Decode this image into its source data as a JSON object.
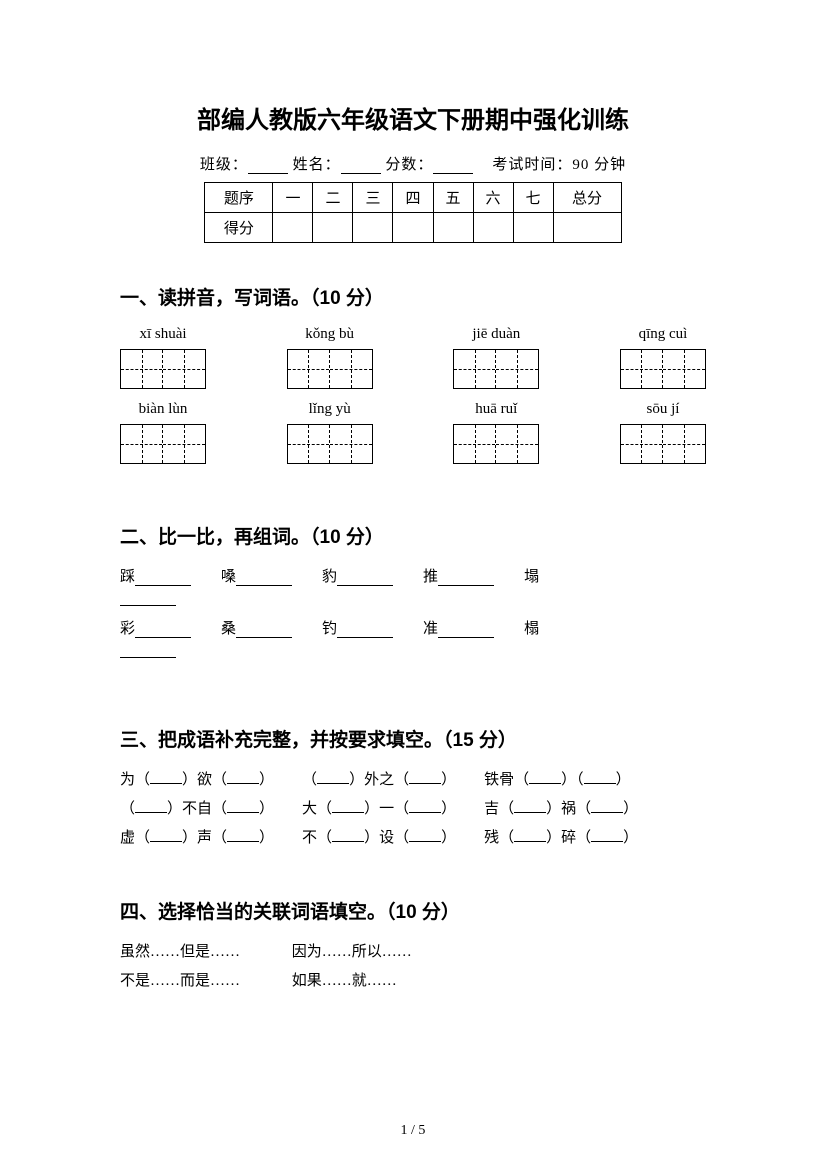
{
  "title": "部编人教版六年级语文下册期中强化训练",
  "header": {
    "class_label": "班级：",
    "name_label": "姓名：",
    "score_label": "分数：",
    "exam_time": "考试时间：90 分钟"
  },
  "score_table": {
    "row_label": "题序",
    "score_label": "得分",
    "cols": [
      "一",
      "二",
      "三",
      "四",
      "五",
      "六",
      "七",
      "总分"
    ]
  },
  "section1": {
    "title": "一、读拼音，写词语。（10 分）",
    "row1": [
      "xī shuài",
      "kǒng bù",
      "jiē duàn",
      "qīng cuì"
    ],
    "row2": [
      "biàn lùn",
      "lǐng yù",
      "huā ruǐ",
      "sōu jí"
    ]
  },
  "section2": {
    "title": "二、比一比，再组词。（10 分）",
    "row1": [
      "踩",
      "嗓",
      "豹",
      "推",
      "塌"
    ],
    "row2": [
      "彩",
      "桑",
      "钓",
      "准",
      "榻"
    ]
  },
  "section3": {
    "title": "三、把成语补充完整，并按要求填空。（15 分）",
    "items": [
      [
        "为（",
        "）欲（",
        "）"
      ],
      [
        "（",
        "）外之（",
        "）"
      ],
      [
        "铁骨（",
        "）（",
        "）"
      ],
      [
        "（",
        "）不自（",
        "）"
      ],
      [
        "大（",
        "）一（",
        "）"
      ],
      [
        "吉（",
        "）祸（",
        "）"
      ],
      [
        "虚（",
        "）声（",
        "）"
      ],
      [
        "不（",
        "）设（",
        "）"
      ],
      [
        "残（",
        "）碎（",
        "）"
      ]
    ]
  },
  "section4": {
    "title": "四、选择恰当的关联词语填空。（10 分）",
    "pairs": [
      [
        "虽然……但是……",
        "因为……所以……"
      ],
      [
        "不是……而是……",
        "如果……就……"
      ]
    ]
  },
  "page_num": "1 / 5"
}
